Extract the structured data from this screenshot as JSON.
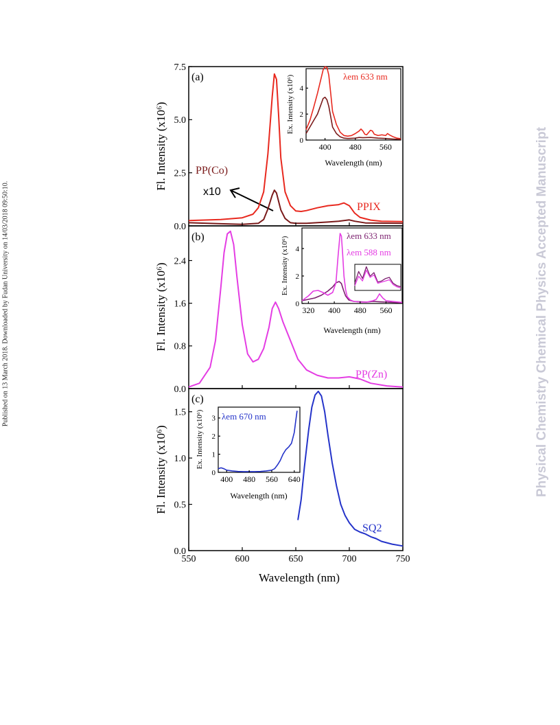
{
  "side_note": "Published on 13 March 2018. Downloaded by Fudan University on 14/03/2018 09:50:10.",
  "watermark": "Physical Chemistry Chemical Physics Accepted Manuscript",
  "colors": {
    "ppix": "#e8281e",
    "ppco": "#7a1a1a",
    "ppzn": "#e43ce3",
    "ppzn_ex633": "#7b1f6e",
    "sq2": "#2433c9",
    "axis": "#000000"
  },
  "chart_data": [
    {
      "panel": "(a)",
      "type": "line",
      "ylabel": "Fl. Intensity (x10⁶)",
      "xlim": [
        550,
        750
      ],
      "ylim": [
        0,
        7.5
      ],
      "yticks": [
        "0.0",
        "2.5",
        "5.0",
        "7.5"
      ],
      "series": [
        {
          "name": "PPIX",
          "color_key": "ppix",
          "x": [
            550,
            580,
            600,
            610,
            615,
            620,
            624,
            628,
            630,
            632,
            634,
            636,
            640,
            645,
            650,
            655,
            660,
            670,
            680,
            690,
            695,
            700,
            705,
            710,
            720,
            730,
            750
          ],
          "y": [
            0.25,
            0.3,
            0.38,
            0.55,
            0.85,
            1.6,
            3.4,
            6.1,
            7.15,
            6.9,
            5.2,
            3.2,
            1.6,
            0.95,
            0.7,
            0.68,
            0.72,
            0.85,
            0.95,
            1.0,
            1.08,
            0.95,
            0.6,
            0.4,
            0.27,
            0.22,
            0.2
          ]
        },
        {
          "name": "PP(Co)",
          "color_key": "ppco",
          "x": [
            550,
            580,
            600,
            615,
            620,
            624,
            628,
            630,
            632,
            634,
            636,
            640,
            645,
            650,
            660,
            680,
            690,
            700,
            705,
            715,
            750
          ],
          "y": [
            0.15,
            0.1,
            0.07,
            0.12,
            0.3,
            0.8,
            1.45,
            1.68,
            1.55,
            1.15,
            0.75,
            0.35,
            0.15,
            0.12,
            0.12,
            0.18,
            0.22,
            0.28,
            0.22,
            0.14,
            0.12
          ]
        }
      ],
      "annotations": {
        "ppco_label": "PP(Co)",
        "ppix_label": "PPIX",
        "scale_note": "x10"
      },
      "inset": {
        "type": "line",
        "title": "λem 633 nm",
        "xlabel": "Wavelength (nm)",
        "ylabel": "Ex. Intensity (x10⁶)",
        "xlim": [
          350,
          600
        ],
        "ylim": [
          0,
          5.5
        ],
        "xticks": [
          "400",
          "480",
          "560"
        ],
        "yticks": [
          "0",
          "2",
          "4"
        ],
        "series": [
          {
            "name": "PPIX",
            "color_key": "ppix",
            "x": [
              350,
              360,
              370,
              380,
              390,
              395,
              400,
              405,
              410,
              415,
              420,
              430,
              440,
              450,
              460,
              470,
              480,
              490,
              495,
              500,
              505,
              510,
              520,
              525,
              530,
              540,
              550,
              560,
              565,
              570,
              580,
              590,
              600
            ],
            "y": [
              0.8,
              1.5,
              2.5,
              3.6,
              4.8,
              5.4,
              5.65,
              5.6,
              5.0,
              3.6,
              2.2,
              1.2,
              0.6,
              0.35,
              0.3,
              0.35,
              0.5,
              0.7,
              0.85,
              0.7,
              0.45,
              0.4,
              0.75,
              0.7,
              0.45,
              0.35,
              0.4,
              0.35,
              0.5,
              0.4,
              0.25,
              0.15,
              0.1
            ]
          },
          {
            "name": "PP(Co)",
            "color_key": "ppco",
            "x": [
              350,
              360,
              370,
              380,
              390,
              395,
              400,
              405,
              410,
              415,
              420,
              430,
              440,
              450,
              460,
              480,
              490,
              500,
              520,
              540,
              560,
              580,
              600
            ],
            "y": [
              0.5,
              1.0,
              1.5,
              2.0,
              2.8,
              3.2,
              3.3,
              3.1,
              2.6,
              1.8,
              1.0,
              0.5,
              0.25,
              0.15,
              0.12,
              0.15,
              0.2,
              0.18,
              0.2,
              0.15,
              0.12,
              0.08,
              0.05
            ]
          }
        ]
      }
    },
    {
      "panel": "(b)",
      "type": "line",
      "ylabel": "Fl. Intensity (x10⁶)",
      "xlim": [
        550,
        750
      ],
      "ylim": [
        0,
        3.05
      ],
      "yticks": [
        "0.0",
        "0.8",
        "1.6",
        "2.4"
      ],
      "series": [
        {
          "name": "PP(Zn)",
          "color_key": "ppzn",
          "x": [
            550,
            560,
            570,
            575,
            580,
            583,
            586,
            589,
            592,
            595,
            600,
            605,
            610,
            615,
            620,
            625,
            628,
            631,
            634,
            638,
            642,
            647,
            652,
            660,
            670,
            680,
            690,
            700,
            710,
            720,
            735,
            750
          ],
          "y": [
            0.03,
            0.1,
            0.4,
            0.9,
            1.9,
            2.55,
            2.9,
            2.95,
            2.7,
            2.1,
            1.2,
            0.65,
            0.5,
            0.55,
            0.75,
            1.15,
            1.5,
            1.62,
            1.5,
            1.25,
            1.05,
            0.8,
            0.55,
            0.35,
            0.25,
            0.2,
            0.2,
            0.22,
            0.18,
            0.1,
            0.05,
            0.03
          ]
        }
      ],
      "annotations": {
        "ppzn_label": "PP(Zn)"
      },
      "inset": {
        "type": "line",
        "xlabel": "Wavelength (nm)",
        "ylabel": "Ex. Intensity (x10⁶)",
        "xlim": [
          300,
          610
        ],
        "ylim": [
          0,
          5.5
        ],
        "xticks": [
          "320",
          "400",
          "480",
          "560"
        ],
        "yticks": [
          "0",
          "2",
          "4"
        ],
        "legend": [
          "λem 633 nm",
          "λem 588 nm"
        ],
        "series": [
          {
            "name": "λem 633 nm",
            "color_key": "ppzn_ex633",
            "x": [
              300,
              320,
              340,
              360,
              380,
              395,
              405,
              415,
              422,
              428,
              435,
              445,
              460,
              480,
              500,
              520,
              540,
              560,
              580,
              600,
              610
            ],
            "y": [
              0.2,
              0.3,
              0.4,
              0.6,
              0.9,
              1.2,
              1.5,
              1.6,
              1.45,
              1.0,
              0.55,
              0.25,
              0.15,
              0.12,
              0.1,
              0.15,
              0.12,
              0.1,
              0.08,
              0.06,
              0.05
            ]
          },
          {
            "name": "λem 588 nm",
            "color_key": "ppzn",
            "x": [
              300,
              320,
              335,
              350,
              365,
              380,
              395,
              405,
              412,
              418,
              422,
              426,
              430,
              435,
              440,
              450,
              460,
              480,
              500,
              520,
              530,
              540,
              550,
              560,
              580,
              600,
              610
            ],
            "y": [
              0.2,
              0.55,
              0.9,
              0.95,
              0.8,
              0.6,
              0.8,
              1.5,
              3.5,
              5.1,
              4.9,
              3.6,
              2.0,
              1.0,
              0.5,
              0.25,
              0.15,
              0.1,
              0.1,
              0.2,
              0.3,
              0.7,
              0.4,
              0.2,
              0.15,
              0.1,
              0.08
            ]
          }
        ],
        "zoom_box": {
          "series": [
            {
              "color_key": "ppzn_ex633",
              "x": [
                490,
                500,
                510,
                520,
                530,
                540,
                550,
                560,
                570,
                580,
                590,
                600,
                610
              ],
              "y": [
                0.3,
                0.8,
                0.5,
                1.0,
                0.6,
                0.75,
                0.35,
                0.4,
                0.5,
                0.55,
                0.3,
                0.2,
                0.15
              ]
            },
            {
              "color_key": "ppzn",
              "x": [
                490,
                500,
                510,
                520,
                530,
                540,
                550,
                560,
                570,
                580,
                590,
                600,
                610
              ],
              "y": [
                0.2,
                0.6,
                0.4,
                0.85,
                0.55,
                0.65,
                0.3,
                0.35,
                0.4,
                0.45,
                0.25,
                0.15,
                0.1
              ]
            }
          ]
        }
      }
    },
    {
      "panel": "(c)",
      "type": "line",
      "xlabel": "Wavelength (nm)",
      "ylabel": "Fl. Intensity (x10⁶)",
      "xlim": [
        550,
        750
      ],
      "ylim": [
        0,
        1.75
      ],
      "xticks": [
        "550",
        "600",
        "650",
        "700",
        "750"
      ],
      "yticks": [
        "0.0",
        "0.5",
        "1.0",
        "1.5"
      ],
      "series": [
        {
          "name": "SQ2",
          "color_key": "sq2",
          "x": [
            652,
            655,
            658,
            662,
            665,
            668,
            671,
            674,
            677,
            680,
            684,
            688,
            692,
            696,
            700,
            705,
            710,
            715,
            720,
            725,
            730,
            740,
            750
          ],
          "y": [
            0.33,
            0.55,
            0.9,
            1.3,
            1.55,
            1.68,
            1.72,
            1.67,
            1.5,
            1.25,
            0.95,
            0.7,
            0.5,
            0.38,
            0.3,
            0.23,
            0.2,
            0.18,
            0.15,
            0.13,
            0.1,
            0.07,
            0.05
          ]
        }
      ],
      "annotations": {
        "sq2_label": "SQ2"
      },
      "inset": {
        "type": "line",
        "title": "λem 670 nm",
        "xlabel": "Wavelength (nm)",
        "ylabel": "Ex. Intensity (x10⁶)",
        "xlim": [
          370,
          660
        ],
        "ylim": [
          0,
          3.6
        ],
        "xticks": [
          "400",
          "480",
          "560",
          "640"
        ],
        "yticks": [
          "0",
          "1",
          "2",
          "3"
        ],
        "series": [
          {
            "name": "λem 670 nm",
            "color_key": "sq2",
            "x": [
              370,
              380,
              390,
              400,
              420,
              440,
              460,
              480,
              500,
              520,
              540,
              560,
              570,
              580,
              590,
              600,
              610,
              620,
              630,
              640,
              645,
              650
            ],
            "y": [
              0.2,
              0.25,
              0.2,
              0.12,
              0.08,
              0.05,
              0.04,
              0.04,
              0.04,
              0.05,
              0.08,
              0.12,
              0.2,
              0.4,
              0.65,
              1.0,
              1.25,
              1.4,
              1.6,
              2.2,
              2.8,
              3.4
            ]
          }
        ]
      }
    }
  ]
}
